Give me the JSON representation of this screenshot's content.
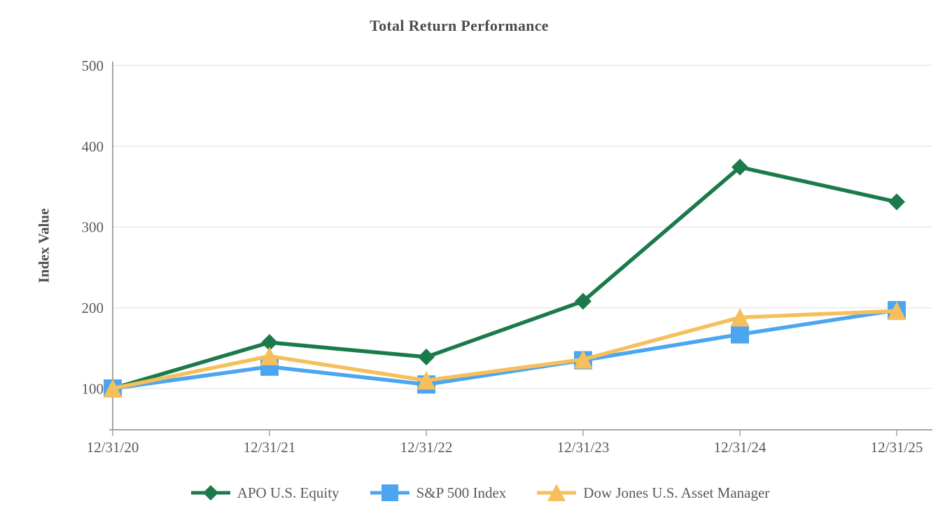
{
  "chart_data": {
    "type": "line",
    "title": "Total Return Performance",
    "ylabel": "Index Value",
    "xlabel": "",
    "x_labels": [
      "12/31/20",
      "12/31/21",
      "12/31/22",
      "12/31/23",
      "12/31/24",
      "12/31/25"
    ],
    "y_ticks": [
      100,
      200,
      300,
      400,
      500
    ],
    "ylim": [
      100,
      500
    ],
    "grid": "horizontal",
    "legend_position": "bottom",
    "colors": {
      "grid": "#e8e8e8",
      "axis": "#a6a6a6",
      "tick_text": "#595959",
      "title_text": "#4d4d4d"
    },
    "series": [
      {
        "name": "APO U.S. Equity",
        "color": "#1a7a4a",
        "marker": "diamond",
        "values": [
          100,
          157,
          139,
          208,
          374,
          331
        ]
      },
      {
        "name": "S&P 500 Index",
        "color": "#4ba5f0",
        "marker": "square",
        "values": [
          100,
          127,
          105,
          135,
          167,
          197
        ]
      },
      {
        "name": "Dow Jones U.S. Asset Manager",
        "color": "#f5c05c",
        "marker": "triangle",
        "values": [
          100,
          140,
          110,
          136,
          188,
          196
        ]
      }
    ]
  }
}
